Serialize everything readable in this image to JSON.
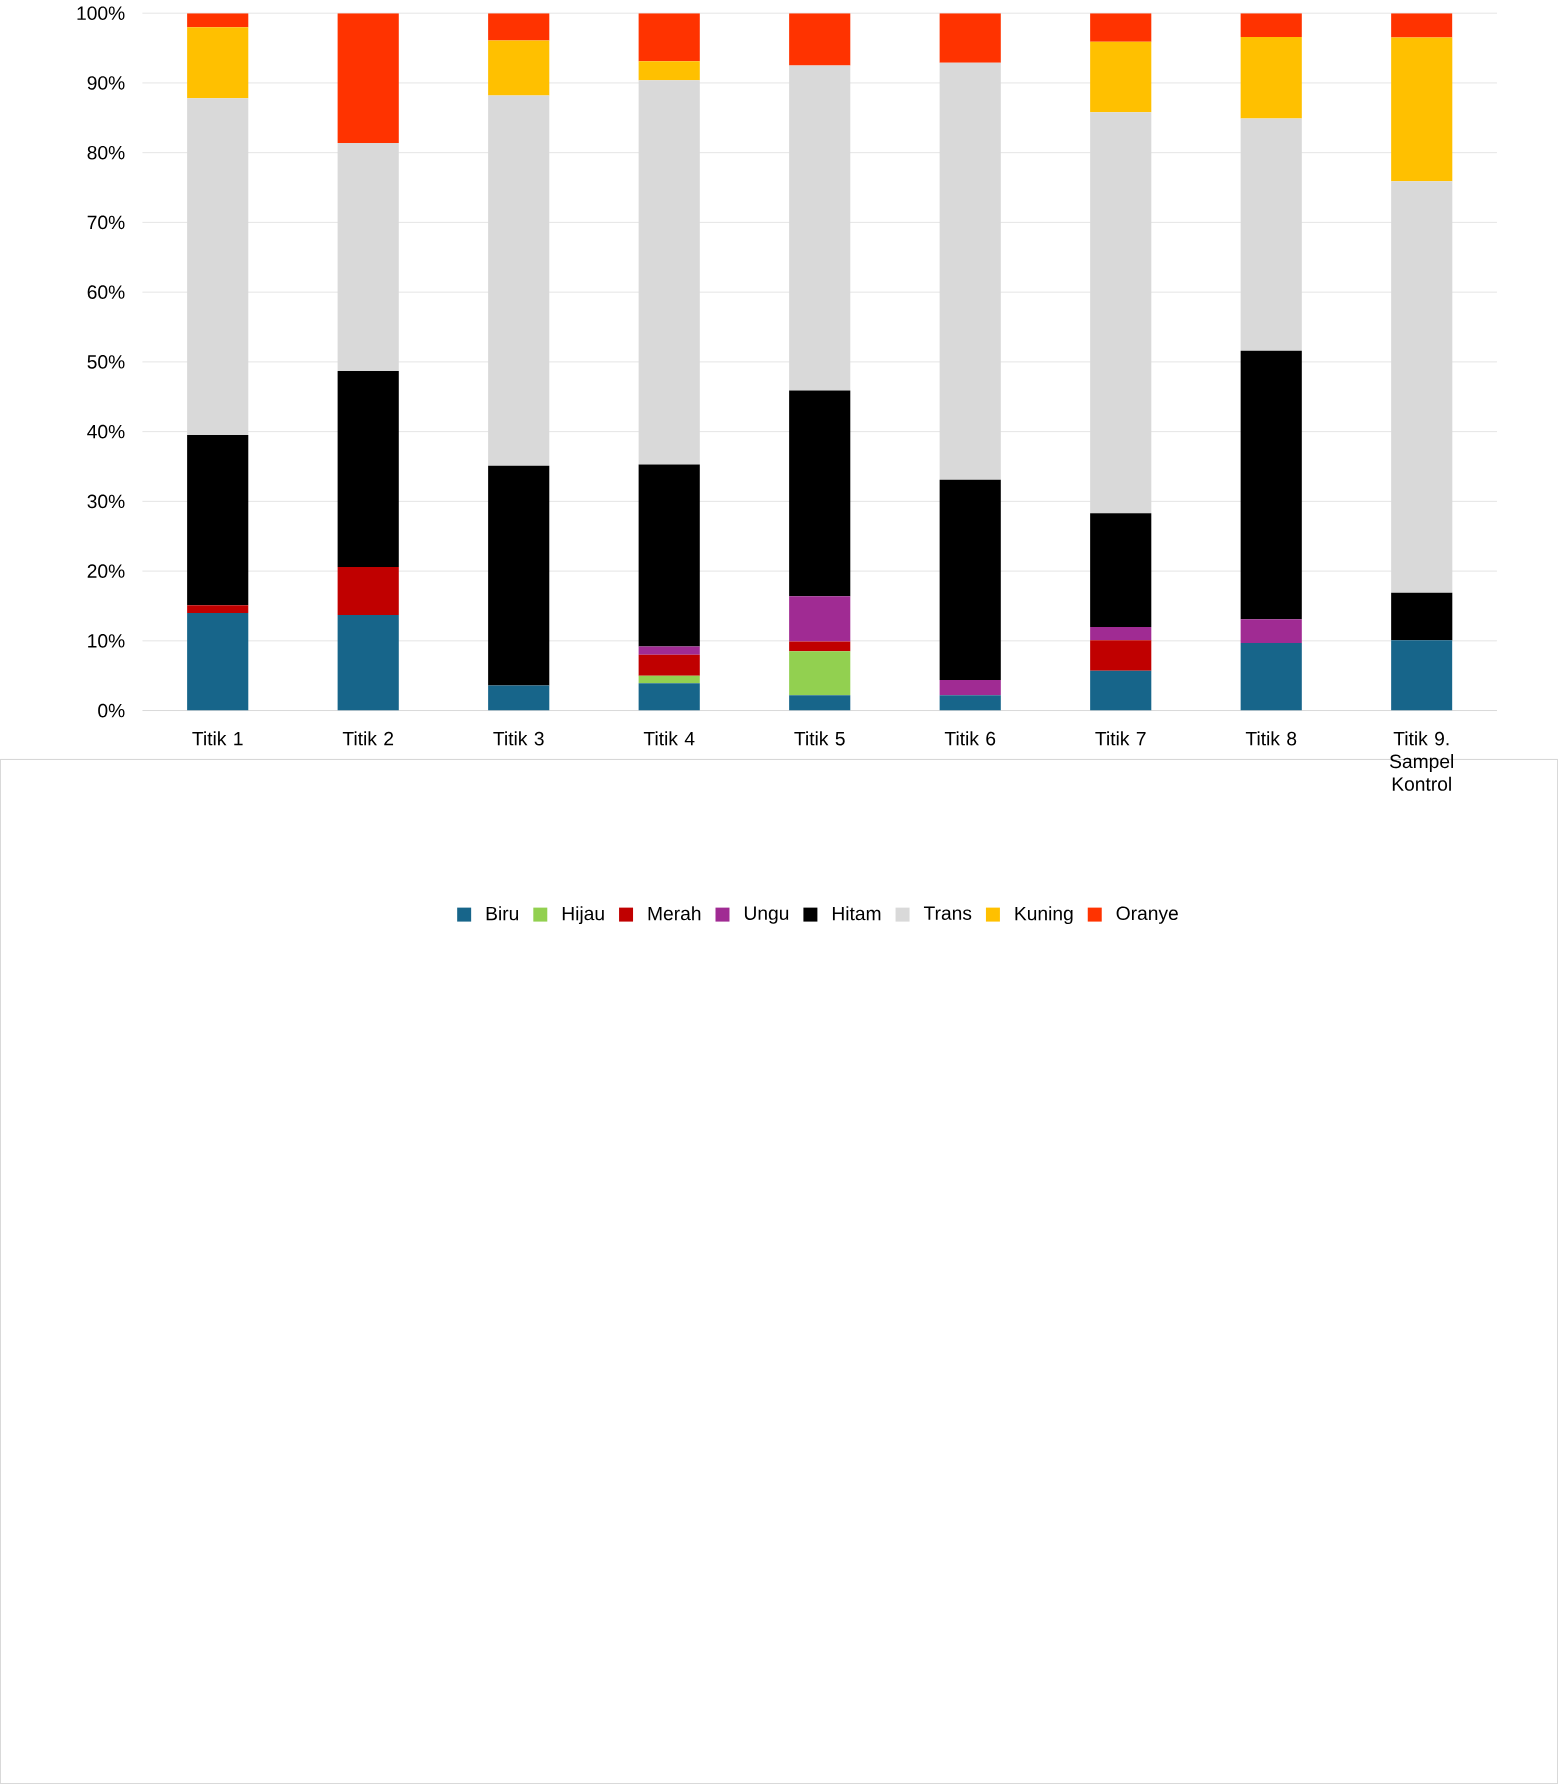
{
  "chart_data": {
    "type": "bar",
    "stacked": true,
    "categories": [
      "Titik 1",
      "Titik 2",
      "Titik 3",
      "Titik 4",
      "Titik 5",
      "Titik 6",
      "Titik 7",
      "Titik 8",
      "Titik 9. Sampel Kontrol"
    ],
    "series": [
      {
        "name": "Biru",
        "color": "#17658a",
        "values": [
          14.0,
          13.7,
          3.6,
          3.9,
          2.2,
          2.2,
          5.7,
          9.7,
          10.1
        ]
      },
      {
        "name": "Hijau",
        "color": "#92d050",
        "values": [
          null,
          null,
          null,
          1.1,
          6.3,
          null,
          null,
          null,
          null
        ]
      },
      {
        "name": "Merah",
        "color": "#c00000",
        "values": [
          1.1,
          6.9,
          null,
          3.0,
          1.4,
          null,
          4.4,
          null,
          null
        ]
      },
      {
        "name": "Ungu",
        "color": "#a02b93",
        "values": [
          null,
          null,
          null,
          1.2,
          6.5,
          2.2,
          1.9,
          3.4,
          null
        ]
      },
      {
        "name": "Hitam",
        "color": "#000000",
        "values": [
          24.4,
          28.1,
          31.5,
          26.1,
          29.5,
          28.7,
          16.3,
          38.5,
          6.8
        ]
      },
      {
        "name": "Trans",
        "color": "#d9d9d9",
        "values": [
          48.3,
          32.7,
          53.1,
          55.1,
          46.6,
          59.8,
          57.5,
          33.3,
          59.0
        ]
      },
      {
        "name": "Kuning",
        "color": "#ffc000",
        "values": [
          10.2,
          null,
          7.9,
          2.7,
          null,
          null,
          10.1,
          11.7,
          20.6
        ]
      },
      {
        "name": "Oranye",
        "color": "#ff3300",
        "values": [
          2.0,
          18.6,
          3.9,
          6.9,
          7.5,
          7.1,
          4.1,
          3.4,
          3.5
        ]
      }
    ],
    "ylim": [
      0,
      100
    ],
    "yticks": [
      {
        "value": 0,
        "label": "0%"
      },
      {
        "value": 10,
        "label": "10%"
      },
      {
        "value": 20,
        "label": "20%"
      },
      {
        "value": 30,
        "label": "30%"
      },
      {
        "value": 40,
        "label": "40%"
      },
      {
        "value": 50,
        "label": "50%"
      },
      {
        "value": 60,
        "label": "60%"
      },
      {
        "value": 70,
        "label": "70%"
      },
      {
        "value": 80,
        "label": "80%"
      },
      {
        "value": 90,
        "label": "90%"
      },
      {
        "value": 100,
        "label": "100%"
      }
    ],
    "grid": "y",
    "legend": "bottom"
  }
}
